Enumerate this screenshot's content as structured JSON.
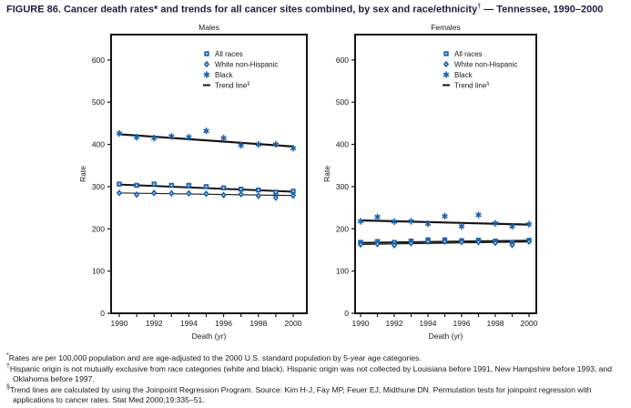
{
  "title": {
    "text": "FIGURE 86. Cancer death rates* and trends for all cancer sites combined, by sex and race/ethnicity",
    "sup": "†",
    "suffix": " — Tennessee, 1990–2000"
  },
  "colors": {
    "marker": "#1b62ae",
    "trend": "#141414",
    "axis": "#141414",
    "text": "#1a1a1a",
    "title_text": "#1e1e40"
  },
  "chart_data": [
    {
      "type": "scatter",
      "title": "Males",
      "xlabel": "Death (yr)",
      "ylabel": "Rate",
      "x": [
        1990,
        1991,
        1992,
        1993,
        1994,
        1995,
        1996,
        1997,
        1998,
        1999,
        2000
      ],
      "x_tick_labels": [
        1990,
        1992,
        1994,
        1996,
        1998,
        2000
      ],
      "ylim": [
        0,
        660
      ],
      "yticks": [
        0,
        100,
        200,
        300,
        400,
        500,
        600
      ],
      "grid": false,
      "legend_position": "upper-center-right",
      "legend": [
        {
          "label": "All races",
          "marker": "square"
        },
        {
          "label": "White non-Hispanic",
          "marker": "diamond"
        },
        {
          "label": "Black",
          "marker": "asterisk"
        },
        {
          "label": "Trend line",
          "sup": "§",
          "marker": "line"
        }
      ],
      "series": [
        {
          "name": "All races",
          "marker": "square",
          "values": [
            306,
            303,
            306,
            303,
            303,
            300,
            297,
            294,
            292,
            287,
            289
          ]
        },
        {
          "name": "White non-Hispanic",
          "marker": "diamond",
          "values": [
            285,
            281,
            285,
            284,
            284,
            283,
            280,
            282,
            278,
            274,
            279
          ]
        },
        {
          "name": "Black",
          "marker": "asterisk",
          "values": [
            426,
            417,
            415,
            419,
            417,
            432,
            415,
            398,
            400,
            400,
            391
          ]
        }
      ],
      "trend_lines": [
        {
          "series": "Black",
          "start": 424,
          "end": 395
        },
        {
          "series": "All races",
          "start": 305,
          "end": 288
        },
        {
          "series": "White non-Hispanic",
          "start": 285,
          "end": 279
        }
      ]
    },
    {
      "type": "scatter",
      "title": "Females",
      "xlabel": "Death (yr)",
      "ylabel": "Rate",
      "x": [
        1990,
        1991,
        1992,
        1993,
        1994,
        1995,
        1996,
        1997,
        1998,
        1999,
        2000
      ],
      "x_tick_labels": [
        1990,
        1992,
        1994,
        1996,
        1998,
        2000
      ],
      "ylim": [
        0,
        660
      ],
      "yticks": [
        0,
        100,
        200,
        300,
        400,
        500,
        600
      ],
      "grid": false,
      "legend_position": "upper-center-right",
      "legend": [
        {
          "label": "All races",
          "marker": "square"
        },
        {
          "label": "White non-Hispanic",
          "marker": "diamond"
        },
        {
          "label": "Black",
          "marker": "asterisk"
        },
        {
          "label": "Trend line",
          "sup": "§",
          "marker": "line"
        }
      ],
      "series": [
        {
          "name": "All races",
          "marker": "square",
          "values": [
            168,
            170,
            168,
            171,
            174,
            174,
            172,
            173,
            171,
            167,
            173
          ]
        },
        {
          "name": "White non-Hispanic",
          "marker": "diamond",
          "values": [
            163,
            164,
            161,
            166,
            170,
            170,
            169,
            169,
            167,
            162,
            170
          ]
        },
        {
          "name": "Black",
          "marker": "asterisk",
          "values": [
            218,
            228,
            217,
            218,
            212,
            230,
            206,
            233,
            213,
            206,
            211
          ]
        }
      ],
      "trend_lines": [
        {
          "series": "Black",
          "start": 220,
          "end": 210
        },
        {
          "series": "All races",
          "start": 167,
          "end": 172
        },
        {
          "series": "White non-Hispanic",
          "start": 163,
          "end": 169
        }
      ]
    }
  ],
  "footnotes": [
    {
      "marker": "*",
      "text": "Rates are per 100,000 population and are age-adjusted to the 2000 U.S. standard population by 5-year age categories."
    },
    {
      "marker": "†",
      "text": "Hispanic origin is not mutually exclusive from race categories (white and black). Hispanic origin was not collected by Louisiana before 1991, New Hampshire before 1993, and Oklahoma before 1997."
    },
    {
      "marker": "§",
      "text": "Trend lines are calculated by using the Joinpoint Regression Program. Source: Kim H-J, Fay MP, Feuer EJ, Midthune DN. Permutation tests for joinpoint regression with applications to cancer rates. Stat Med 2000;19:335–51."
    }
  ]
}
